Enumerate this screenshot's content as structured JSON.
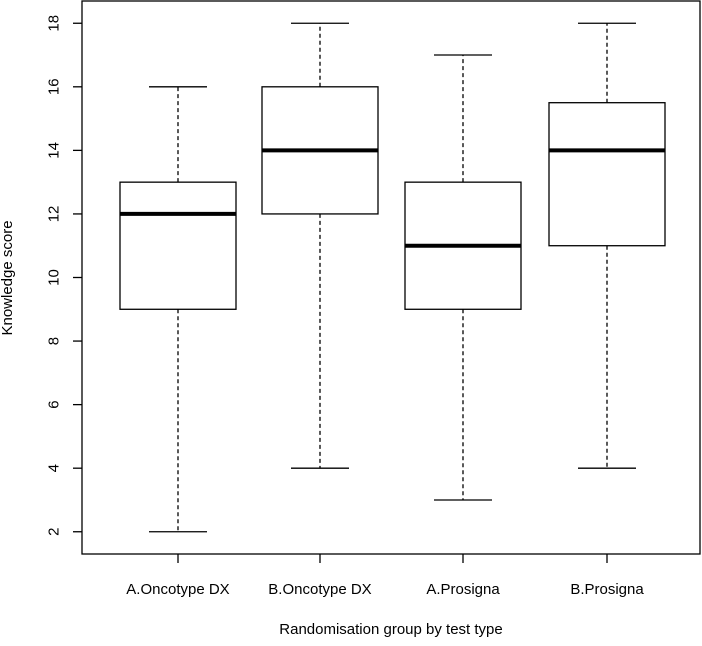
{
  "chart_data": {
    "type": "boxplot",
    "title": "",
    "xlabel": "Randomisation group by test type",
    "ylabel": "Knowledge score",
    "ylim": [
      1.3,
      18.7
    ],
    "yticks": [
      2,
      4,
      6,
      8,
      10,
      12,
      14,
      16,
      18
    ],
    "ytick_labels": [
      "2",
      "4",
      "6",
      "8",
      "10",
      "12",
      "14",
      "16",
      "18"
    ],
    "grid": false,
    "categories": [
      "A.Oncotype DX",
      "B.Oncotype DX",
      "A.Prosigna",
      "B.Prosigna"
    ],
    "boxes": [
      {
        "category": "A.Oncotype DX",
        "min": 2,
        "q1": 9,
        "median": 12,
        "q3": 13,
        "max": 16
      },
      {
        "category": "B.Oncotype DX",
        "min": 4,
        "q1": 12,
        "median": 14,
        "q3": 16,
        "max": 18
      },
      {
        "category": "A.Prosigna",
        "min": 3,
        "q1": 9,
        "median": 11,
        "q3": 13,
        "max": 17
      },
      {
        "category": "B.Prosigna",
        "min": 4,
        "q1": 11,
        "median": 14,
        "q3": 15.5,
        "max": 18
      }
    ],
    "colors": {
      "box_fill": "#ffffff",
      "stroke": "#000000",
      "background": "#ffffff"
    }
  }
}
